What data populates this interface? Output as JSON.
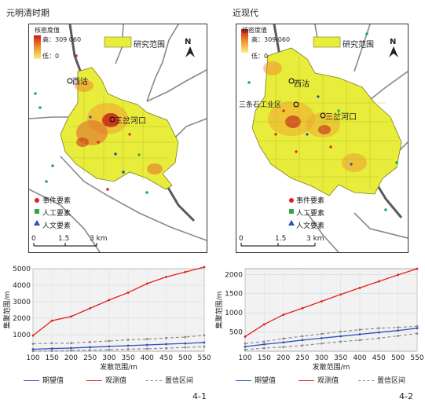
{
  "panels": [
    {
      "title": "元明清时期",
      "kde": {
        "title": "核密度值",
        "high": "高：309 060",
        "low": "低：0"
      },
      "study_area": "研究范围",
      "places": [
        "西沽",
        "三岔河口"
      ],
      "legend": [
        "事件要素",
        "人工要素",
        "人文要素"
      ],
      "scalebar": {
        "ticks": [
          "0",
          "1.5",
          "3 km"
        ]
      },
      "north": "N",
      "figure_label": "4-1"
    },
    {
      "title": "近现代",
      "kde": {
        "title": "核密度值",
        "high": "高：309 060",
        "low": "低：0"
      },
      "study_area": "研究范围",
      "places": [
        "西沽",
        "三条石工业区",
        "三岔河口"
      ],
      "legend": [
        "事件要素",
        "人工要素",
        "人文要素"
      ],
      "scalebar": {
        "ticks": [
          "0",
          "1.5",
          "3 km"
        ]
      },
      "north": "N",
      "figure_label": "4-2"
    }
  ],
  "colors": {
    "observed": "#e02020",
    "expected": "#2a4fbf",
    "ci": "#888888",
    "study": "#e8ec3a",
    "hot": "#e04030"
  },
  "chart_data": [
    {
      "type": "line",
      "x": [
        100,
        150,
        200,
        250,
        300,
        350,
        400,
        450,
        500,
        550
      ],
      "xlabel": "发散范围/m",
      "ylabel": "集聚范围/m",
      "ylim": [
        0,
        5000
      ],
      "yticks": [
        1000,
        2000,
        3000,
        4000,
        5000
      ],
      "series": [
        {
          "name": "期望值",
          "values": [
            120,
            160,
            190,
            240,
            290,
            340,
            380,
            430,
            470,
            530
          ]
        },
        {
          "name": "观测值",
          "values": [
            950,
            1850,
            2100,
            2600,
            3100,
            3550,
            4100,
            4500,
            4800,
            5100
          ]
        },
        {
          "name": "置信区间",
          "values": [
            450,
            480,
            490,
            560,
            620,
            690,
            730,
            800,
            860,
            960
          ]
        },
        {
          "name": "置信区间",
          "values": [
            10,
            20,
            40,
            60,
            90,
            120,
            150,
            180,
            230,
            280
          ]
        }
      ]
    },
    {
      "type": "line",
      "x": [
        100,
        150,
        200,
        250,
        300,
        350,
        400,
        450,
        500,
        550
      ],
      "xlabel": "发散范围/m",
      "ylabel": "集聚范围/m",
      "ylim": [
        0,
        2150
      ],
      "yticks": [
        500,
        1000,
        1500,
        2000
      ],
      "series": [
        {
          "name": "期望值",
          "values": [
            120,
            180,
            230,
            290,
            340,
            390,
            440,
            490,
            540,
            600
          ]
        },
        {
          "name": "观测值",
          "values": [
            380,
            700,
            950,
            1120,
            1300,
            1480,
            1650,
            1820,
            1990,
            2150
          ]
        },
        {
          "name": "置信区间",
          "values": [
            200,
            250,
            330,
            390,
            450,
            510,
            560,
            600,
            620,
            650
          ]
        },
        {
          "name": "置信区间",
          "values": [
            40,
            80,
            110,
            150,
            200,
            250,
            290,
            340,
            400,
            460
          ]
        }
      ]
    }
  ],
  "chart_legend": [
    "期望值",
    "观测值",
    "置信区间"
  ]
}
